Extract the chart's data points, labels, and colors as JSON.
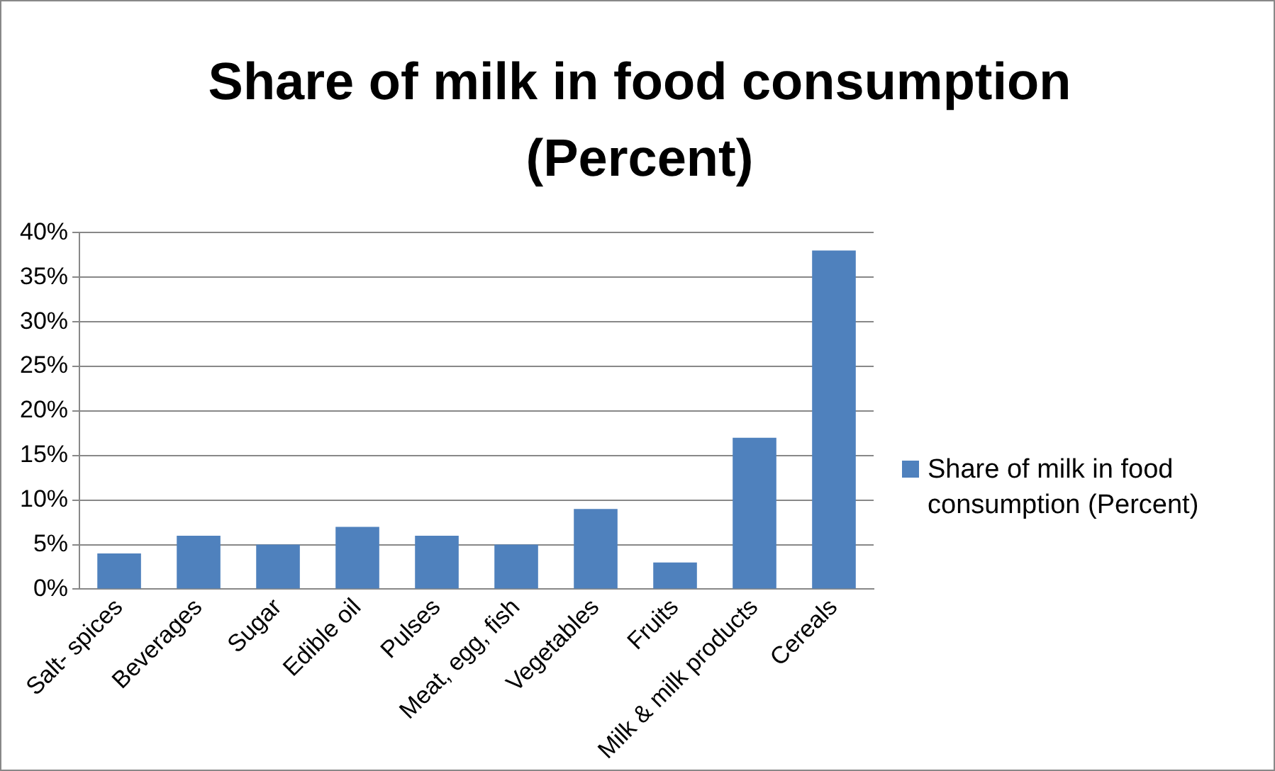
{
  "chart_data": {
    "type": "bar",
    "title": "Share of milk in food consumption (Percent)",
    "categories": [
      "Salt- spices",
      "Beverages",
      "Sugar",
      "Edible oil",
      "Pulses",
      "Meat, egg, fish",
      "Vegetables",
      "Fruits",
      "Milk & milk products",
      "Cereals"
    ],
    "series": [
      {
        "name": "Share of milk in food consumption (Percent)",
        "color": "#4f81bd",
        "values": [
          4,
          6,
          5,
          7,
          6,
          5,
          9,
          3,
          17,
          38
        ]
      }
    ],
    "ylim": [
      0,
      40
    ],
    "yticks": [
      {
        "value": 0,
        "label": "0%"
      },
      {
        "value": 5,
        "label": "5%"
      },
      {
        "value": 10,
        "label": "10%"
      },
      {
        "value": 15,
        "label": "15%"
      },
      {
        "value": 20,
        "label": "20%"
      },
      {
        "value": 25,
        "label": "25%"
      },
      {
        "value": 30,
        "label": "30%"
      },
      {
        "value": 35,
        "label": "35%"
      },
      {
        "value": 40,
        "label": "40%"
      }
    ],
    "grid": "y",
    "legend": "right"
  }
}
